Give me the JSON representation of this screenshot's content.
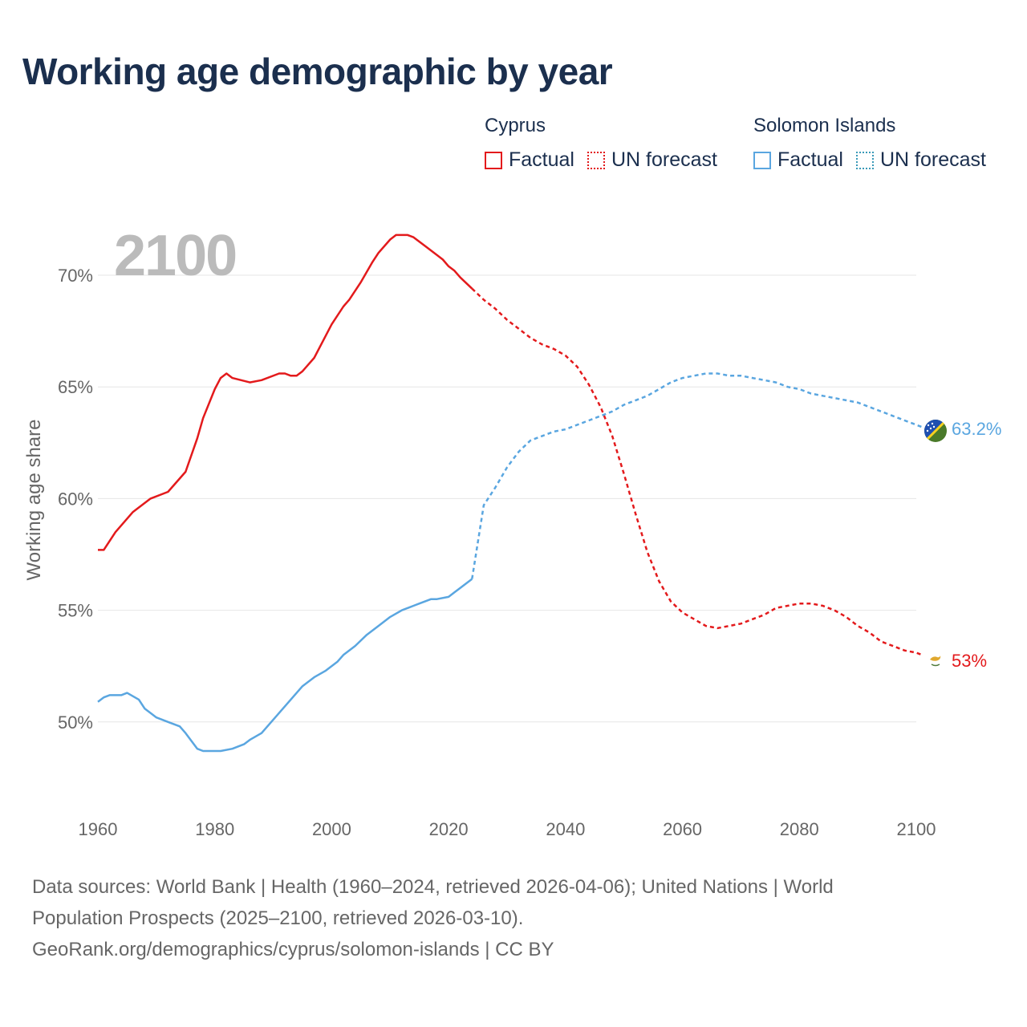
{
  "title": "Working age demographic by year",
  "legend": {
    "groups": [
      {
        "name": "Cyprus",
        "factual": "Factual",
        "forecast": "UN forecast"
      },
      {
        "name": "Solomon Islands",
        "factual": "Factual",
        "forecast": "UN forecast"
      }
    ]
  },
  "footer": {
    "line1": "Data sources: World Bank | Health (1960–2024, retrieved 2026-04-06); United Nations | World",
    "line2": "Population Prospects (2025–2100, retrieved 2026-03-10).",
    "line3": "GeoRank.org/demographics/cyprus/solomon-islands | CC BY"
  },
  "chart_data": {
    "type": "line",
    "title": "Working age demographic by year",
    "year_watermark": "2100",
    "xlabel": "",
    "ylabel": "Working age share",
    "xlim": [
      1960,
      2100
    ],
    "ylim": [
      46.4,
      73.7
    ],
    "x_ticks": [
      "1960",
      "1980",
      "2000",
      "2020",
      "2040",
      "2060",
      "2080",
      "2100"
    ],
    "y_ticks": [
      "50%",
      "55%",
      "60%",
      "65%",
      "70%"
    ],
    "grid": true,
    "colors": {
      "cyprus": "#e31a1c",
      "solomon": "#5aa6e0",
      "axis_text": "#666666",
      "watermark": "#bbbbbb"
    },
    "series": [
      {
        "name": "Cyprus",
        "factual_end": 2024,
        "end_label": "53%",
        "flag": "cyprus-flag",
        "points": [
          [
            1960,
            57.7
          ],
          [
            1961,
            57.7
          ],
          [
            1963,
            58.5
          ],
          [
            1966,
            59.4
          ],
          [
            1969,
            60.0
          ],
          [
            1972,
            60.3
          ],
          [
            1975,
            61.2
          ],
          [
            1977,
            62.7
          ],
          [
            1978,
            63.6
          ],
          [
            1980,
            64.9
          ],
          [
            1981,
            65.4
          ],
          [
            1982,
            65.6
          ],
          [
            1983,
            65.4
          ],
          [
            1986,
            65.2
          ],
          [
            1988,
            65.3
          ],
          [
            1991,
            65.6
          ],
          [
            1992,
            65.6
          ],
          [
            1993,
            65.5
          ],
          [
            1994,
            65.5
          ],
          [
            1995,
            65.7
          ],
          [
            1997,
            66.3
          ],
          [
            1999,
            67.3
          ],
          [
            2000,
            67.8
          ],
          [
            2002,
            68.6
          ],
          [
            2003,
            68.9
          ],
          [
            2005,
            69.7
          ],
          [
            2007,
            70.6
          ],
          [
            2008,
            71.0
          ],
          [
            2010,
            71.6
          ],
          [
            2011,
            71.8
          ],
          [
            2013,
            71.8
          ],
          [
            2014,
            71.7
          ],
          [
            2016,
            71.3
          ],
          [
            2018,
            70.9
          ],
          [
            2019,
            70.7
          ],
          [
            2020,
            70.4
          ],
          [
            2021,
            70.2
          ],
          [
            2022,
            69.9
          ],
          [
            2024,
            69.4
          ],
          [
            2026,
            68.9
          ],
          [
            2028,
            68.5
          ],
          [
            2030,
            68.0
          ],
          [
            2032,
            67.6
          ],
          [
            2034,
            67.2
          ],
          [
            2036,
            66.9
          ],
          [
            2038,
            66.7
          ],
          [
            2040,
            66.4
          ],
          [
            2042,
            65.9
          ],
          [
            2044,
            65.1
          ],
          [
            2046,
            64.1
          ],
          [
            2048,
            62.8
          ],
          [
            2050,
            61.1
          ],
          [
            2052,
            59.3
          ],
          [
            2054,
            57.6
          ],
          [
            2056,
            56.3
          ],
          [
            2058,
            55.4
          ],
          [
            2060,
            54.9
          ],
          [
            2062,
            54.6
          ],
          [
            2064,
            54.3
          ],
          [
            2066,
            54.2
          ],
          [
            2068,
            54.3
          ],
          [
            2070,
            54.4
          ],
          [
            2072,
            54.6
          ],
          [
            2074,
            54.8
          ],
          [
            2076,
            55.1
          ],
          [
            2078,
            55.2
          ],
          [
            2080,
            55.3
          ],
          [
            2082,
            55.3
          ],
          [
            2084,
            55.2
          ],
          [
            2086,
            55.0
          ],
          [
            2088,
            54.7
          ],
          [
            2090,
            54.3
          ],
          [
            2092,
            54.0
          ],
          [
            2094,
            53.6
          ],
          [
            2096,
            53.4
          ],
          [
            2098,
            53.2
          ],
          [
            2100,
            53.1
          ],
          [
            2101,
            53.0
          ]
        ]
      },
      {
        "name": "Solomon Islands",
        "factual_end": 2024,
        "end_label": "63.2%",
        "flag": "solomon-islands-flag",
        "points": [
          [
            1960,
            50.9
          ],
          [
            1961,
            51.1
          ],
          [
            1962,
            51.2
          ],
          [
            1964,
            51.2
          ],
          [
            1965,
            51.3
          ],
          [
            1967,
            51.0
          ],
          [
            1968,
            50.6
          ],
          [
            1970,
            50.2
          ],
          [
            1972,
            50.0
          ],
          [
            1974,
            49.8
          ],
          [
            1975,
            49.5
          ],
          [
            1977,
            48.8
          ],
          [
            1978,
            48.7
          ],
          [
            1980,
            48.7
          ],
          [
            1981,
            48.7
          ],
          [
            1983,
            48.8
          ],
          [
            1985,
            49.0
          ],
          [
            1986,
            49.2
          ],
          [
            1988,
            49.5
          ],
          [
            1989,
            49.8
          ],
          [
            1991,
            50.4
          ],
          [
            1993,
            51.0
          ],
          [
            1995,
            51.6
          ],
          [
            1997,
            52.0
          ],
          [
            1999,
            52.3
          ],
          [
            2001,
            52.7
          ],
          [
            2002,
            53.0
          ],
          [
            2004,
            53.4
          ],
          [
            2006,
            53.9
          ],
          [
            2008,
            54.3
          ],
          [
            2010,
            54.7
          ],
          [
            2012,
            55.0
          ],
          [
            2014,
            55.2
          ],
          [
            2015,
            55.3
          ],
          [
            2017,
            55.5
          ],
          [
            2018,
            55.5
          ],
          [
            2020,
            55.6
          ],
          [
            2021,
            55.8
          ],
          [
            2022,
            56.0
          ],
          [
            2024,
            56.4
          ],
          [
            2026,
            59.7
          ],
          [
            2028,
            60.5
          ],
          [
            2030,
            61.4
          ],
          [
            2032,
            62.1
          ],
          [
            2034,
            62.6
          ],
          [
            2036,
            62.8
          ],
          [
            2038,
            63.0
          ],
          [
            2040,
            63.1
          ],
          [
            2042,
            63.3
          ],
          [
            2044,
            63.5
          ],
          [
            2046,
            63.7
          ],
          [
            2048,
            63.9
          ],
          [
            2050,
            64.2
          ],
          [
            2052,
            64.4
          ],
          [
            2054,
            64.6
          ],
          [
            2056,
            64.9
          ],
          [
            2058,
            65.2
          ],
          [
            2060,
            65.4
          ],
          [
            2062,
            65.5
          ],
          [
            2064,
            65.6
          ],
          [
            2066,
            65.6
          ],
          [
            2068,
            65.5
          ],
          [
            2070,
            65.5
          ],
          [
            2072,
            65.4
          ],
          [
            2074,
            65.3
          ],
          [
            2076,
            65.2
          ],
          [
            2078,
            65.0
          ],
          [
            2080,
            64.9
          ],
          [
            2082,
            64.7
          ],
          [
            2084,
            64.6
          ],
          [
            2086,
            64.5
          ],
          [
            2088,
            64.4
          ],
          [
            2090,
            64.3
          ],
          [
            2092,
            64.1
          ],
          [
            2094,
            63.9
          ],
          [
            2096,
            63.7
          ],
          [
            2098,
            63.5
          ],
          [
            2100,
            63.3
          ],
          [
            2101,
            63.2
          ]
        ]
      }
    ]
  }
}
